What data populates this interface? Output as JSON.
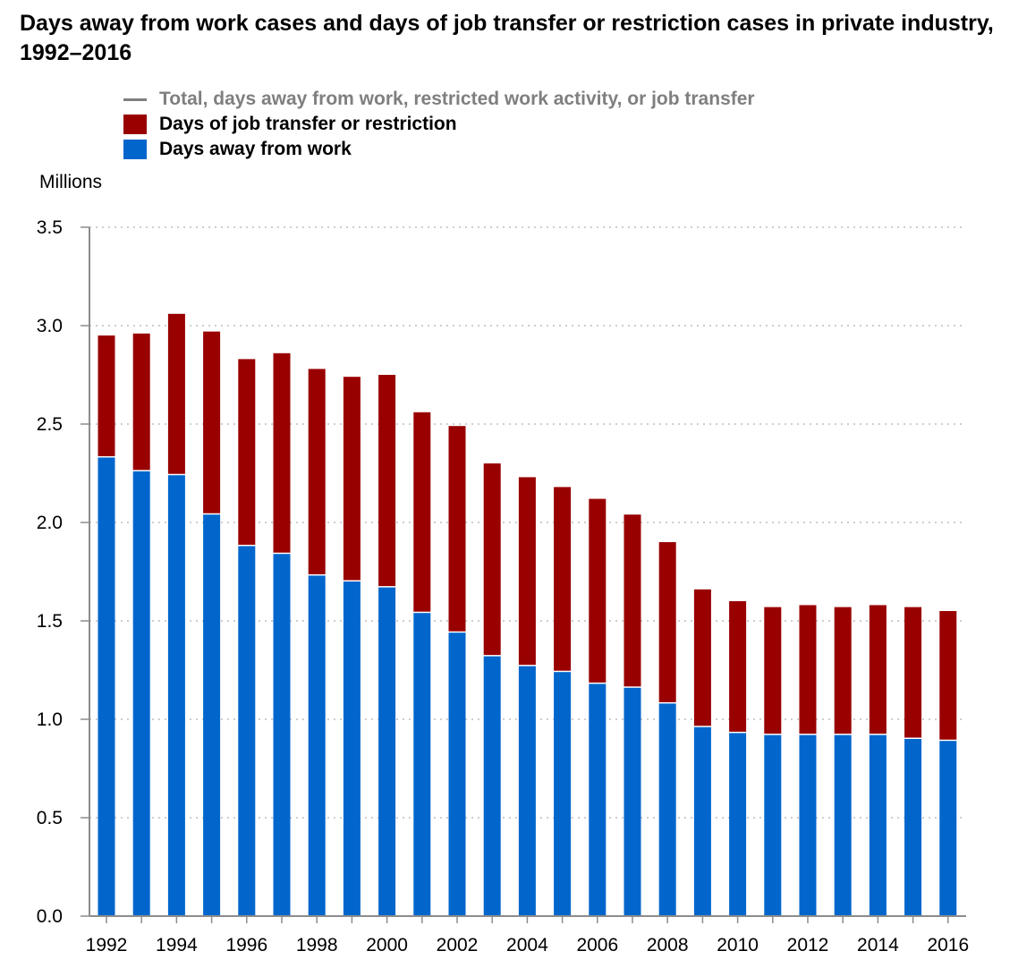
{
  "chart_data": {
    "type": "bar",
    "stacked": true,
    "title": "Days away from work cases and days of job transfer or restriction cases in private industry, 1992–2016",
    "ylabel": "Millions",
    "xlabel": "",
    "ylim": [
      0,
      3.5
    ],
    "yticks": [
      "0.0",
      "0.5",
      "1.0",
      "1.5",
      "2.0",
      "2.5",
      "3.0",
      "3.5"
    ],
    "grid": true,
    "legend_position": "top",
    "categories": [
      "1992",
      "1993",
      "1994",
      "1995",
      "1996",
      "1997",
      "1998",
      "1999",
      "2000",
      "2001",
      "2002",
      "2003",
      "2004",
      "2005",
      "2006",
      "2007",
      "2008",
      "2009",
      "2010",
      "2011",
      "2012",
      "2013",
      "2014",
      "2015",
      "2016"
    ],
    "xtick_labels": [
      "1992",
      "",
      "1994",
      "",
      "1996",
      "",
      "1998",
      "",
      "2000",
      "",
      "2002",
      "",
      "2004",
      "",
      "2006",
      "",
      "2008",
      "",
      "2010",
      "",
      "2012",
      "",
      "2014",
      "",
      "2016"
    ],
    "series": [
      {
        "name": "Days away from work",
        "color": "#0066cc",
        "values": [
          2.33,
          2.26,
          2.24,
          2.04,
          1.88,
          1.84,
          1.73,
          1.7,
          1.67,
          1.54,
          1.44,
          1.32,
          1.27,
          1.24,
          1.18,
          1.16,
          1.08,
          0.96,
          0.93,
          0.92,
          0.92,
          0.92,
          0.92,
          0.9,
          0.89
        ]
      },
      {
        "name": "Days of job transfer or restriction",
        "color": "#990000",
        "values": [
          0.62,
          0.7,
          0.82,
          0.93,
          0.95,
          1.02,
          1.05,
          1.04,
          1.08,
          1.02,
          1.05,
          0.98,
          0.96,
          0.94,
          0.94,
          0.88,
          0.82,
          0.7,
          0.67,
          0.65,
          0.66,
          0.65,
          0.66,
          0.67,
          0.66
        ]
      }
    ],
    "total_series": {
      "name": "Total, days away from work, restricted work activity, or job transfer",
      "color": "#7f7f7f",
      "values": [
        2.95,
        2.96,
        3.06,
        2.97,
        2.83,
        2.86,
        2.78,
        2.74,
        2.75,
        2.56,
        2.49,
        2.3,
        2.23,
        2.18,
        2.12,
        2.04,
        1.9,
        1.66,
        1.6,
        1.57,
        1.58,
        1.57,
        1.58,
        1.57,
        1.55
      ]
    }
  }
}
